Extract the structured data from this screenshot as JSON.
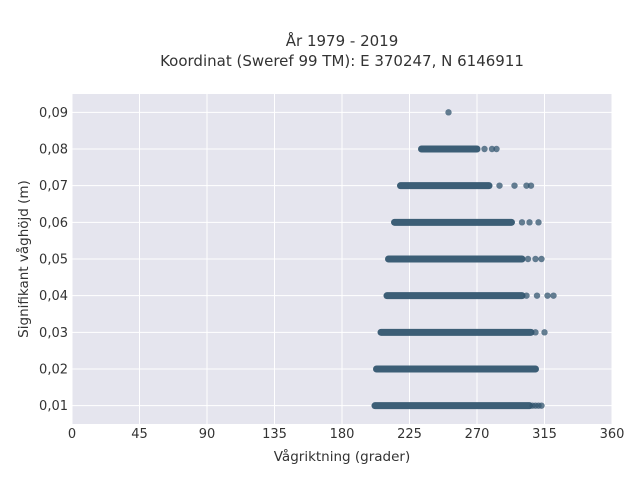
{
  "chart_data": {
    "type": "scatter",
    "title": "År 1979 - 2019",
    "subtitle": "Koordinat (Sweref 99 TM): E 370247, N 6146911",
    "xlabel": "Vågriktning (grader)",
    "ylabel": "Signifikant våghöjd (m)",
    "xlim": [
      0,
      360
    ],
    "ylim": [
      0.005,
      0.095
    ],
    "xticks": [
      0,
      45,
      90,
      135,
      180,
      225,
      270,
      315,
      360
    ],
    "xtick_labels": [
      "0",
      "45",
      "90",
      "135",
      "180",
      "225",
      "270",
      "315",
      "360"
    ],
    "yticks": [
      0.01,
      0.02,
      0.03,
      0.04,
      0.05,
      0.06,
      0.07,
      0.08,
      0.09
    ],
    "ytick_labels": [
      "0,01",
      "0,02",
      "0,03",
      "0,04",
      "0,05",
      "0,06",
      "0,07",
      "0,08",
      "0,09"
    ],
    "grid": true,
    "background": "#e5e5ee",
    "point_color": "#33566f",
    "bands": [
      {
        "y": 0.01,
        "x_start": 202,
        "x_end": 305,
        "outliers": [
          307,
          309,
          311,
          313
        ]
      },
      {
        "y": 0.02,
        "x_start": 203,
        "x_end": 309,
        "outliers": []
      },
      {
        "y": 0.03,
        "x_start": 206,
        "x_end": 306,
        "outliers": [
          309,
          315
        ]
      },
      {
        "y": 0.04,
        "x_start": 210,
        "x_end": 300,
        "outliers": [
          303,
          310,
          317,
          321
        ]
      },
      {
        "y": 0.05,
        "x_start": 211,
        "x_end": 300,
        "outliers": [
          304,
          309,
          313
        ]
      },
      {
        "y": 0.06,
        "x_start": 215,
        "x_end": 293,
        "outliers": [
          300,
          305,
          311
        ]
      },
      {
        "y": 0.07,
        "x_start": 219,
        "x_end": 278,
        "outliers": [
          285,
          295,
          303,
          306
        ]
      },
      {
        "y": 0.08,
        "x_start": 233,
        "x_end": 270,
        "outliers": [
          275,
          280,
          283
        ]
      },
      {
        "y": 0.09,
        "x_start": null,
        "x_end": null,
        "outliers": [
          251
        ]
      }
    ]
  }
}
